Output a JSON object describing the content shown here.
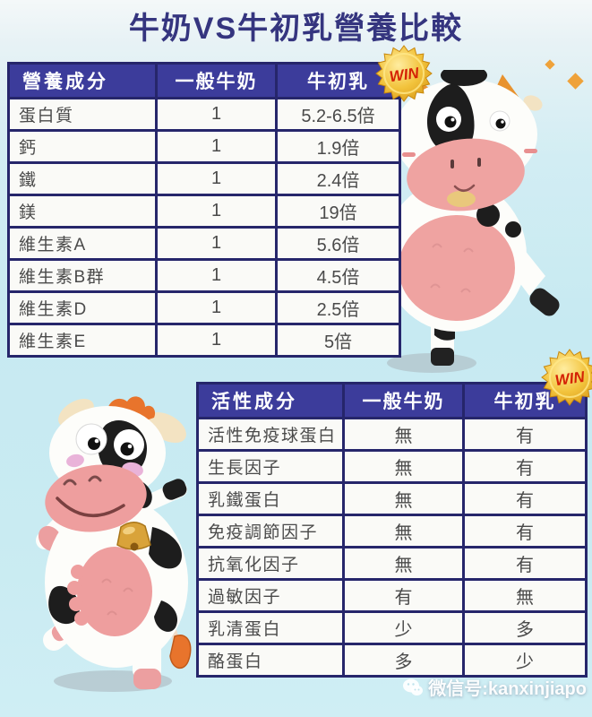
{
  "page": {
    "title": "牛奶VS牛初乳營養比較",
    "win_label": "WIN",
    "watermark": "微信号:kanxinjiapo",
    "colors": {
      "background": "#c9ebf2",
      "table_header_bg": "#3c3c9b",
      "table_header_text": "#ffffff",
      "table_border": "#26266b",
      "cell_bg": "#fafaf7",
      "cell_text": "#4a4a4a",
      "title_text": "#35357f",
      "badge_gold": "#f2c33c",
      "badge_text": "#d42105"
    }
  },
  "chart_data": [
    {
      "type": "table",
      "title": "營養成分比較 (nutrient comparison)",
      "columns": [
        "營養成分",
        "一般牛奶",
        "牛初乳"
      ],
      "rows": [
        [
          "蛋白質",
          "1",
          "5.2-6.5倍"
        ],
        [
          "鈣",
          "1",
          "1.9倍"
        ],
        [
          "鐵",
          "1",
          "2.4倍"
        ],
        [
          "鎂",
          "1",
          "19倍"
        ],
        [
          "維生素A",
          "1",
          "5.6倍"
        ],
        [
          "維生素B群",
          "1",
          "4.5倍"
        ],
        [
          "維生素D",
          "1",
          "2.5倍"
        ],
        [
          "維生素E",
          "1",
          "5倍"
        ]
      ]
    },
    {
      "type": "table",
      "title": "活性成分比較 (active components comparison)",
      "columns": [
        "活性成分",
        "一般牛奶",
        "牛初乳"
      ],
      "rows": [
        [
          "活性免疫球蛋白",
          "無",
          "有"
        ],
        [
          "生長因子",
          "無",
          "有"
        ],
        [
          "乳鐵蛋白",
          "無",
          "有"
        ],
        [
          "免疫調節因子",
          "無",
          "有"
        ],
        [
          "抗氧化因子",
          "無",
          "有"
        ],
        [
          "過敏因子",
          "有",
          "無"
        ],
        [
          "乳清蛋白",
          "少",
          "多"
        ],
        [
          "酪蛋白",
          "多",
          "少"
        ]
      ]
    }
  ]
}
